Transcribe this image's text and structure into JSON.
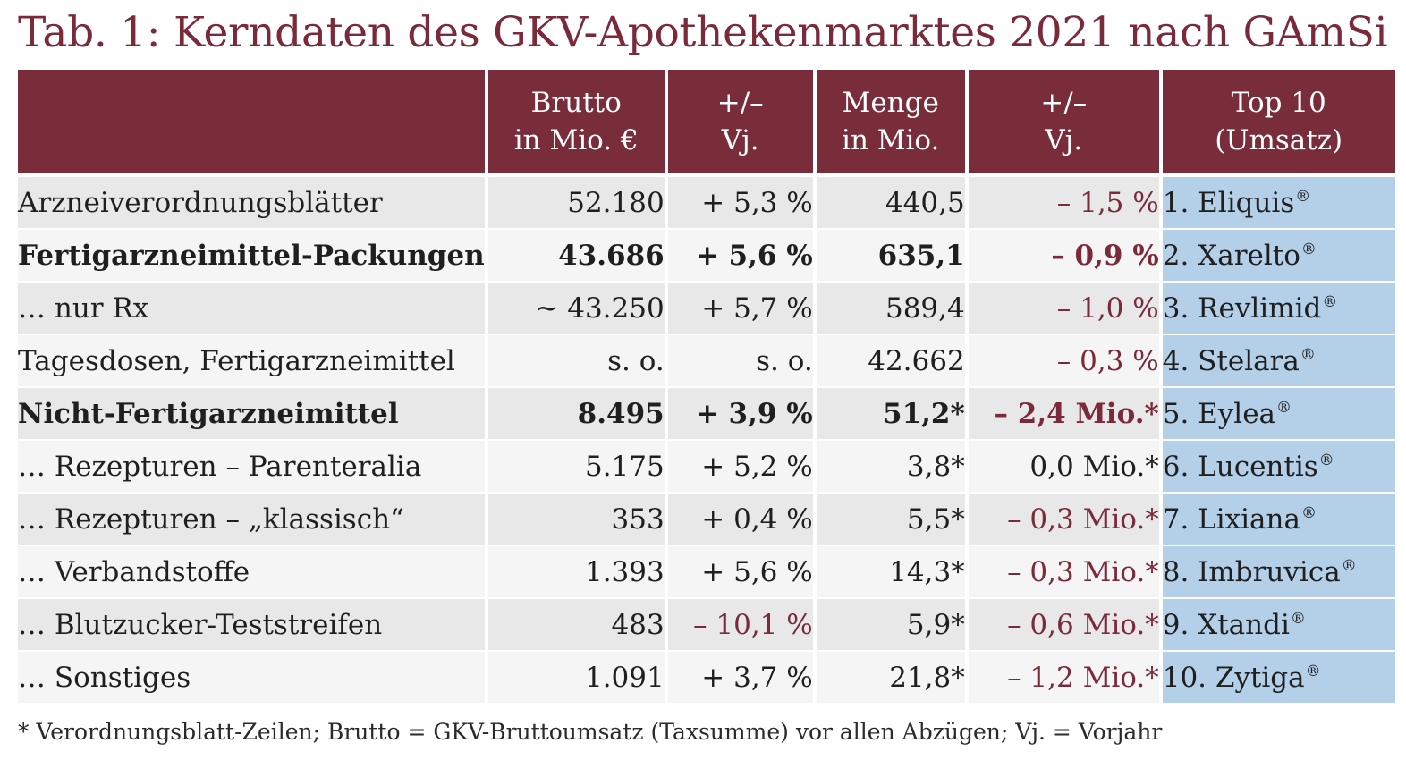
{
  "title": "Tab. 1: Kerndaten des GKV-Apothekenmarktes 2021 nach GAmSi",
  "colors": {
    "header_bg": "#792c3a",
    "title": "#7b2a3a",
    "negative": "#7b2a3a",
    "top10_bg": "#b4d0e9",
    "row_odd": "#e8e8e8",
    "row_even": "#f5f5f5"
  },
  "table": {
    "headers": [
      {
        "line1": "",
        "line2": ""
      },
      {
        "line1": "Brutto",
        "line2": "in Mio. €"
      },
      {
        "line1": "+/–",
        "line2": "Vj."
      },
      {
        "line1": "Menge",
        "line2": "in Mio."
      },
      {
        "line1": "+/–",
        "line2": "Vj."
      },
      {
        "line1": "Top 10",
        "line2": "(Umsatz)"
      }
    ],
    "rows": [
      {
        "label": "Arzneiverordnungsblätter",
        "brutto": "52.180",
        "brutto_change": "+ 5,3 %",
        "menge": "440,5",
        "menge_change": "– 1,5 %",
        "top10": "1. Eliquis",
        "top10_mark": "®"
      },
      {
        "label": "Fertigarzneimittel-Packungen",
        "brutto": "43.686",
        "brutto_change": "+ 5,6 %",
        "menge": "635,1",
        "menge_change": "– 0,9 %",
        "top10": "2. Xarelto",
        "top10_mark": "®"
      },
      {
        "label": "… nur Rx",
        "brutto": "~ 43.250",
        "brutto_change": "+ 5,7 %",
        "menge": "589,4",
        "menge_change": "– 1,0 %",
        "top10": "3. Revlimid",
        "top10_mark": "®"
      },
      {
        "label": "Tagesdosen, Fertigarzneimittel",
        "brutto": "s. o.",
        "brutto_change": "s. o.",
        "menge": "42.662",
        "menge_change": "– 0,3 %",
        "top10": "4. Stelara",
        "top10_mark": "®"
      },
      {
        "label": "Nicht-Fertigarzneimittel",
        "brutto": "8.495",
        "brutto_change": "+ 3,9 %",
        "menge": "51,2*",
        "menge_change": "– 2,4 Mio.*",
        "top10": "5. Eylea",
        "top10_mark": "®"
      },
      {
        "label": "… Rezepturen – Parenteralia",
        "brutto": "5.175",
        "brutto_change": "+ 5,2 %",
        "menge": "3,8*",
        "menge_change": "0,0 Mio.*",
        "top10": "6. Lucentis",
        "top10_mark": "®"
      },
      {
        "label": "… Rezepturen – „klassisch“",
        "brutto": "353",
        "brutto_change": "+ 0,4 %",
        "menge": "5,5*",
        "menge_change": "– 0,3 Mio.*",
        "top10": "7. Lixiana",
        "top10_mark": "®"
      },
      {
        "label": "… Verbandstoffe",
        "brutto": "1.393",
        "brutto_change": "+ 5,6 %",
        "menge": "14,3*",
        "menge_change": "– 0,3 Mio.*",
        "top10": "8. Imbruvica",
        "top10_mark": "®"
      },
      {
        "label": "… Blutzucker-Teststreifen",
        "brutto": "483",
        "brutto_change": "– 10,1 %",
        "menge": "5,9*",
        "menge_change": "– 0,6 Mio.*",
        "top10": "9. Xtandi",
        "top10_mark": "®"
      },
      {
        "label": "… Sonstiges",
        "brutto": "1.091",
        "brutto_change": "+ 3,7 %",
        "menge": "21,8*",
        "menge_change": "– 1,2 Mio.*",
        "top10": "10. Zytiga",
        "top10_mark": "®"
      }
    ]
  },
  "footnote": "* Verordnungsblatt-Zeilen; Brutto = GKV-Bruttoumsatz (Taxsumme) vor allen Abzügen; Vj. = Vorjahr"
}
